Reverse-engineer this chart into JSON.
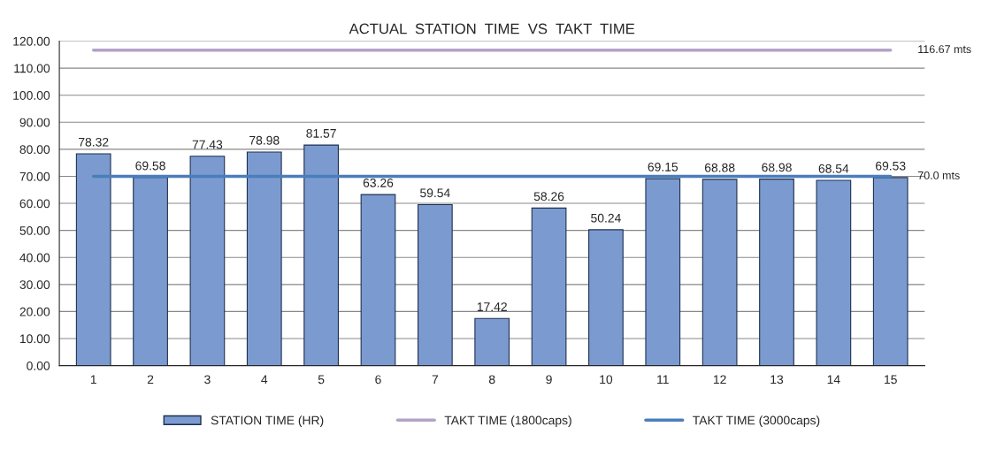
{
  "chart_data": {
    "type": "bar",
    "title": "ACTUAL  STATION  TIME  VS  TAKT  TIME",
    "categories": [
      "1",
      "2",
      "3",
      "4",
      "5",
      "6",
      "7",
      "8",
      "9",
      "10",
      "11",
      "12",
      "13",
      "14",
      "15"
    ],
    "series": [
      {
        "name": "STATION TIME (HR)",
        "color": "#7b9bd0",
        "values": [
          78.32,
          69.58,
          77.43,
          78.98,
          81.57,
          63.26,
          59.54,
          17.42,
          58.26,
          50.24,
          69.15,
          68.88,
          68.98,
          68.54,
          69.53
        ],
        "value_labels": [
          "78.32",
          "69.58",
          "77.43",
          "78.98",
          "81.57",
          "63.26",
          "59.54",
          "17.42",
          "58.26",
          "50.24",
          "69.15",
          "68.88",
          "68.98",
          "68.54",
          "69.53"
        ]
      },
      {
        "name": "TAKT TIME (1800caps)",
        "type": "line",
        "color": "#b3a2c7",
        "values": [
          116.67,
          116.67,
          116.67,
          116.67,
          116.67,
          116.67,
          116.67,
          116.67,
          116.67,
          116.67,
          116.67,
          116.67,
          116.67,
          116.67,
          116.67
        ]
      },
      {
        "name": "TAKT TIME (3000caps)",
        "type": "line",
        "color": "#4a7ebb",
        "values": [
          70.0,
          70.0,
          70.0,
          70.0,
          70.0,
          70.0,
          70.0,
          70.0,
          70.0,
          70.0,
          70.0,
          70.0,
          70.0,
          70.0,
          70.0
        ]
      }
    ],
    "annotations": [
      {
        "text": "116.67 mts",
        "x": "15",
        "y": 116.67
      },
      {
        "text": "70.0 mts",
        "x": "15",
        "y": 70.0
      }
    ],
    "ylim": [
      0,
      120
    ],
    "yticks": [
      {
        "value": 0,
        "label": "0.00"
      },
      {
        "value": 10,
        "label": "10.00"
      },
      {
        "value": 20,
        "label": "20.00"
      },
      {
        "value": 30,
        "label": "30.00"
      },
      {
        "value": 40,
        "label": "40.00"
      },
      {
        "value": 50,
        "label": "50.00"
      },
      {
        "value": 60,
        "label": "60.00"
      },
      {
        "value": 70,
        "label": "70.00"
      },
      {
        "value": 80,
        "label": "80.00"
      },
      {
        "value": 90,
        "label": "90.00"
      },
      {
        "value": 100,
        "label": "100.00"
      },
      {
        "value": 110,
        "label": "110.00"
      },
      {
        "value": 120,
        "label": "120.00"
      }
    ],
    "grid": "y",
    "legend": "bottom"
  }
}
